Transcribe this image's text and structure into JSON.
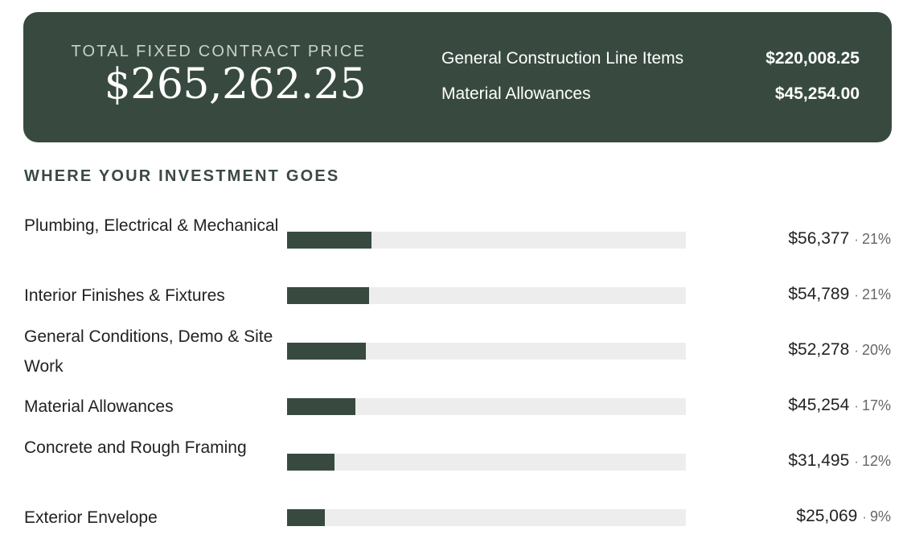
{
  "summary": {
    "total_label": "TOTAL FIXED CONTRACT PRICE",
    "total_value": "$265,262.25",
    "breakdown": [
      {
        "label": "General Construction Line Items",
        "value": "$220,008.25"
      },
      {
        "label": "Material Allowances",
        "value": "$45,254.00"
      }
    ]
  },
  "allocation": {
    "heading": "WHERE YOUR INVESTMENT GOES",
    "separator": "·",
    "items": [
      {
        "label": "Plumbing, Electrical & Mechanical",
        "amount": "$56,377",
        "percent": "21%",
        "share": 0.2125
      },
      {
        "label": "Interior Finishes & Fixtures",
        "amount": "$54,789",
        "percent": "21%",
        "share": 0.2065
      },
      {
        "label": "General Conditions, Demo & Site Work",
        "amount": "$52,278",
        "percent": "20%",
        "share": 0.1971
      },
      {
        "label": "Material Allowances",
        "amount": "$45,254",
        "percent": "17%",
        "share": 0.1706
      },
      {
        "label": "Concrete and Rough Framing",
        "amount": "$31,495",
        "percent": "12%",
        "share": 0.1187
      },
      {
        "label": "Exterior Envelope",
        "amount": "$25,069",
        "percent": "9%",
        "share": 0.0945
      }
    ]
  },
  "colors": {
    "card_background": "#384a40",
    "bar_fill": "#384a40",
    "bar_track": "#ededed"
  }
}
